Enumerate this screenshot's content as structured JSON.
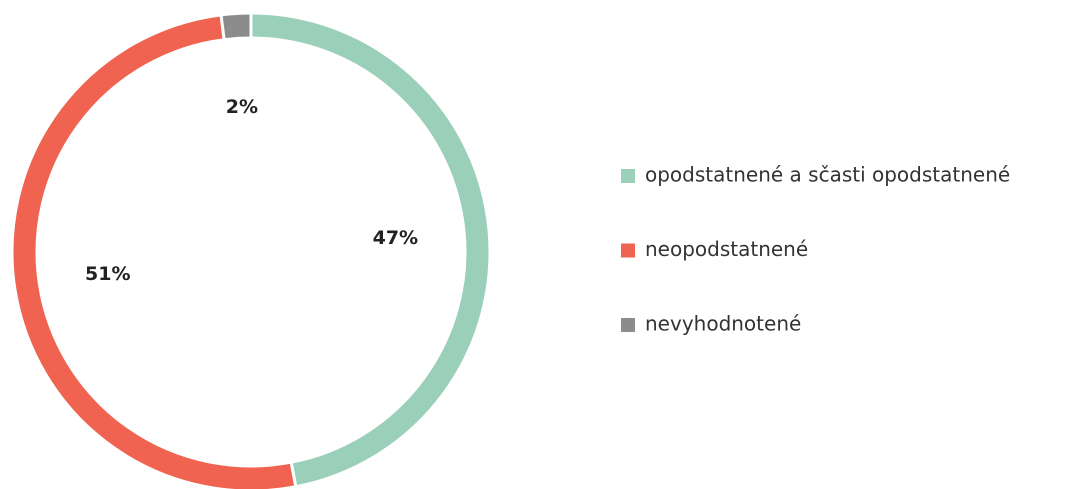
{
  "chart_data": {
    "type": "donut",
    "categories": [
      "opodstatnené a sčasti opodstatnené",
      "neopodstatnené",
      "nevyhodnotené"
    ],
    "values": [
      47,
      51,
      2
    ],
    "value_labels": [
      "47%",
      "51%",
      "2%"
    ],
    "colors": [
      "#9acfba",
      "#ef6350",
      "#8c8c8c"
    ],
    "legend": "right"
  }
}
